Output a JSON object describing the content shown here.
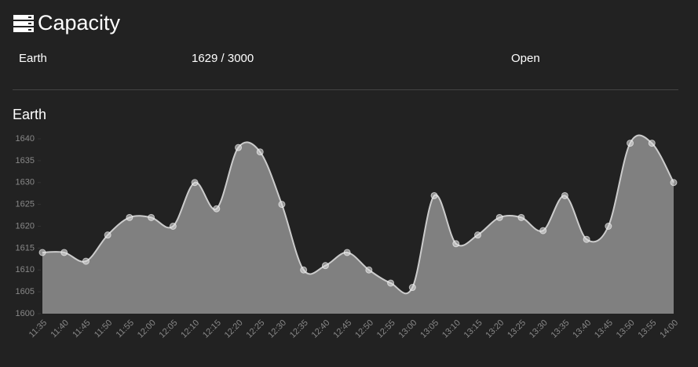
{
  "header": {
    "title": "Capacity"
  },
  "table": {
    "rows": [
      [
        "Earth",
        "1629 / 3000",
        "Open"
      ]
    ]
  },
  "chart_data": {
    "type": "area",
    "title": "Earth",
    "categories": [
      "11:35",
      "11:40",
      "11:45",
      "11:50",
      "11:55",
      "12:00",
      "12:05",
      "12:10",
      "12:15",
      "12:20",
      "12:25",
      "12:30",
      "12:35",
      "12:40",
      "12:45",
      "12:50",
      "12:55",
      "13:00",
      "13:05",
      "13:10",
      "13:15",
      "13:20",
      "13:25",
      "13:30",
      "13:35",
      "13:40",
      "13:45",
      "13:50",
      "13:55",
      "14:00"
    ],
    "values": [
      1614,
      1614,
      1612,
      1618,
      1622,
      1622,
      1620,
      1630,
      1624,
      1638,
      1637,
      1625,
      1610,
      1611,
      1614,
      1610,
      1607,
      1606,
      1627,
      1616,
      1618,
      1622,
      1622,
      1619,
      1627,
      1617,
      1620,
      1639,
      1639,
      1630
    ],
    "color": "#808080",
    "line_color": "#cccccc",
    "ylim": [
      1600,
      1640
    ],
    "yticks": [
      1600,
      1605,
      1610,
      1615,
      1620,
      1625,
      1630,
      1635,
      1640
    ]
  }
}
